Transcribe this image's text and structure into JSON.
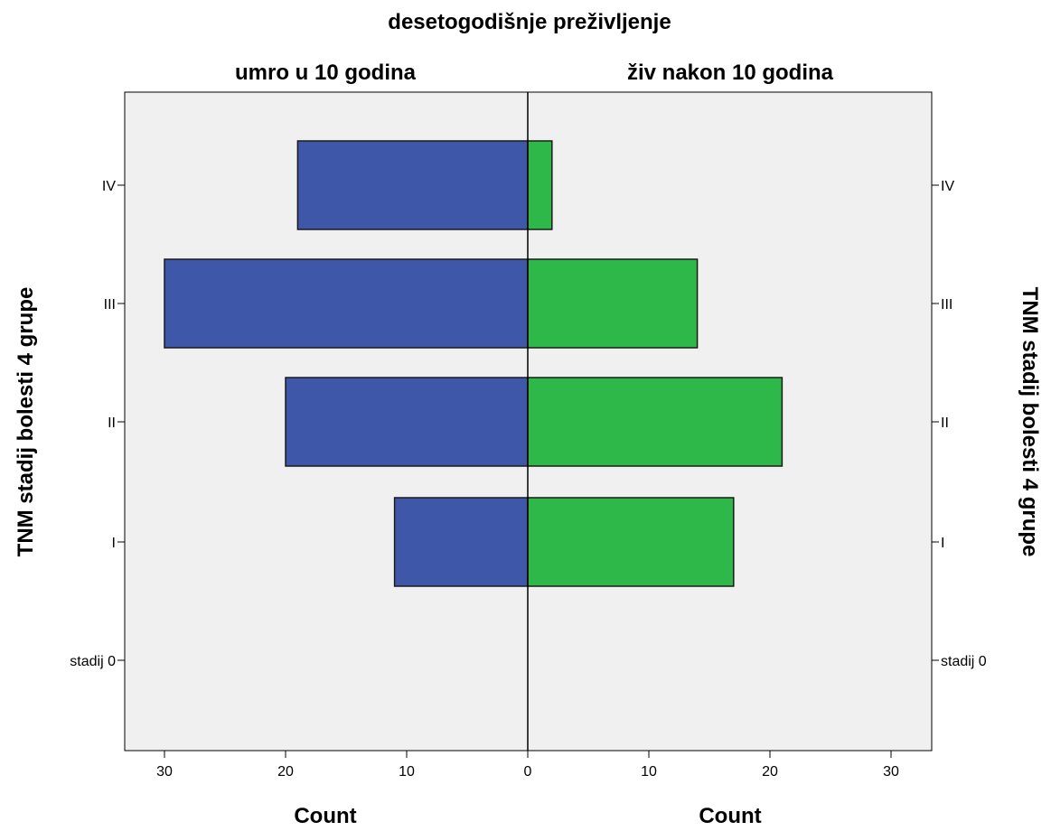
{
  "chart_data": {
    "type": "bar",
    "subtype": "population-pyramid",
    "title": "desetogodišnje preživljenje",
    "panels": [
      "umro u 10 godina",
      "živ nakon 10 godina"
    ],
    "categories": [
      "IV",
      "III",
      "II",
      "I",
      "stadij 0"
    ],
    "series": [
      {
        "name": "umro u 10 godina",
        "values": [
          19,
          30,
          20,
          11,
          0
        ],
        "color": "#3f57a8"
      },
      {
        "name": "živ nakon 10 godina",
        "values": [
          2,
          14,
          21,
          17,
          0
        ],
        "color": "#2fb84a"
      }
    ],
    "xlabel_left": "Count",
    "xlabel_right": "Count",
    "ylabel_left": "TNM stadij bolesti 4 grupe",
    "ylabel_right": "TNM stadij bolesti 4 grupe",
    "xlim": [
      0,
      33
    ],
    "xticks": [
      0,
      10,
      20,
      30
    ],
    "plot_background": "#f0f0f0",
    "grid": false
  }
}
